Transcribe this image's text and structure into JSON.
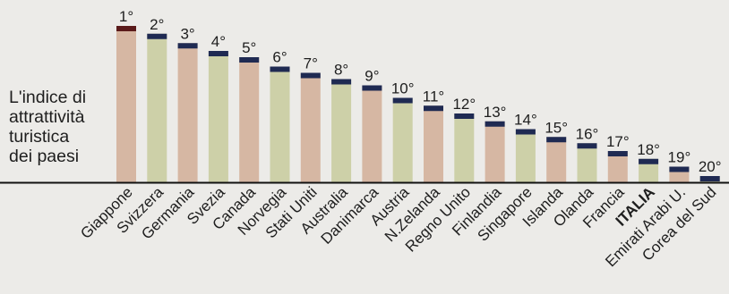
{
  "title_lines": [
    "L'indice di",
    "attrattività",
    "turistica",
    "dei paesi"
  ],
  "colors": {
    "bar_fill": "#d6b7a3",
    "bar_fill_alt": "#cdd0a8",
    "cap_navy": "#1f2a52",
    "cap_first": "#5a1a1a",
    "axis": "#111111"
  },
  "chart_data": {
    "type": "bar",
    "title": "L'indice di attrattività turistica dei paesi",
    "categories": [
      "Giappone",
      "Svizzera",
      "Germania",
      "Svezia",
      "Canada",
      "Norvegia",
      "Stati Uniti",
      "Australia",
      "Danimarca",
      "Austria",
      "N.Zelanda",
      "Regno Unito",
      "Finlandia",
      "Singapore",
      "Islanda",
      "Olanda",
      "Francia",
      "ITALIA",
      "Emirati Arabi U.",
      "Corea del Sud"
    ],
    "rank_labels": [
      "1°",
      "2°",
      "3°",
      "4°",
      "5°",
      "6°",
      "7°",
      "8°",
      "9°",
      "10°",
      "11°",
      "12°",
      "13°",
      "14°",
      "15°",
      "16°",
      "17°",
      "18°",
      "19°",
      "20°"
    ],
    "values": [
      100,
      95,
      89,
      84,
      80,
      74,
      70,
      66,
      62,
      54,
      49,
      44,
      39,
      34,
      29,
      25,
      20,
      15,
      10,
      4
    ],
    "highlight": "ITALIA",
    "ylim": [
      0,
      100
    ],
    "grid": false,
    "legend": "none"
  }
}
